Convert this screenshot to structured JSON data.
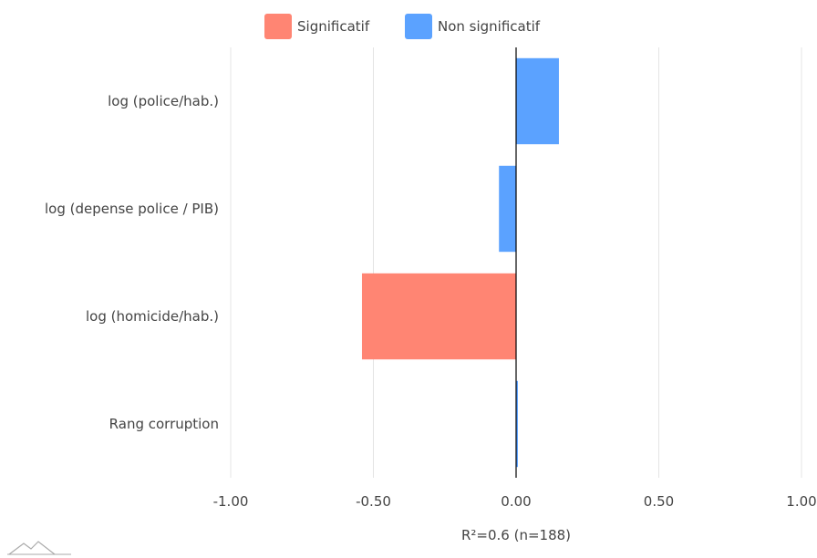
{
  "legend": [
    {
      "label": "Significatif",
      "color": "#ff8573"
    },
    {
      "label": "Non significatif",
      "color": "#5ba2ff"
    }
  ],
  "logo_icon": "mountain-logo-icon",
  "chart_data": {
    "type": "bar",
    "orientation": "horizontal",
    "categories": [
      "log (police/hab.)",
      "log (depense police / PIB)",
      "log (homicide/hab.)",
      "Rang corruption"
    ],
    "values": [
      0.15,
      -0.06,
      -0.54,
      0.005
    ],
    "significant": [
      false,
      false,
      true,
      false
    ],
    "xlim": [
      -1.0,
      1.0
    ],
    "xticks": [
      "-1.00",
      "-0.50",
      "0.00",
      "0.50",
      "1.00"
    ],
    "xlabel": "R²=0.6 (n=188)",
    "grid": true,
    "legend_position": "top-center"
  }
}
